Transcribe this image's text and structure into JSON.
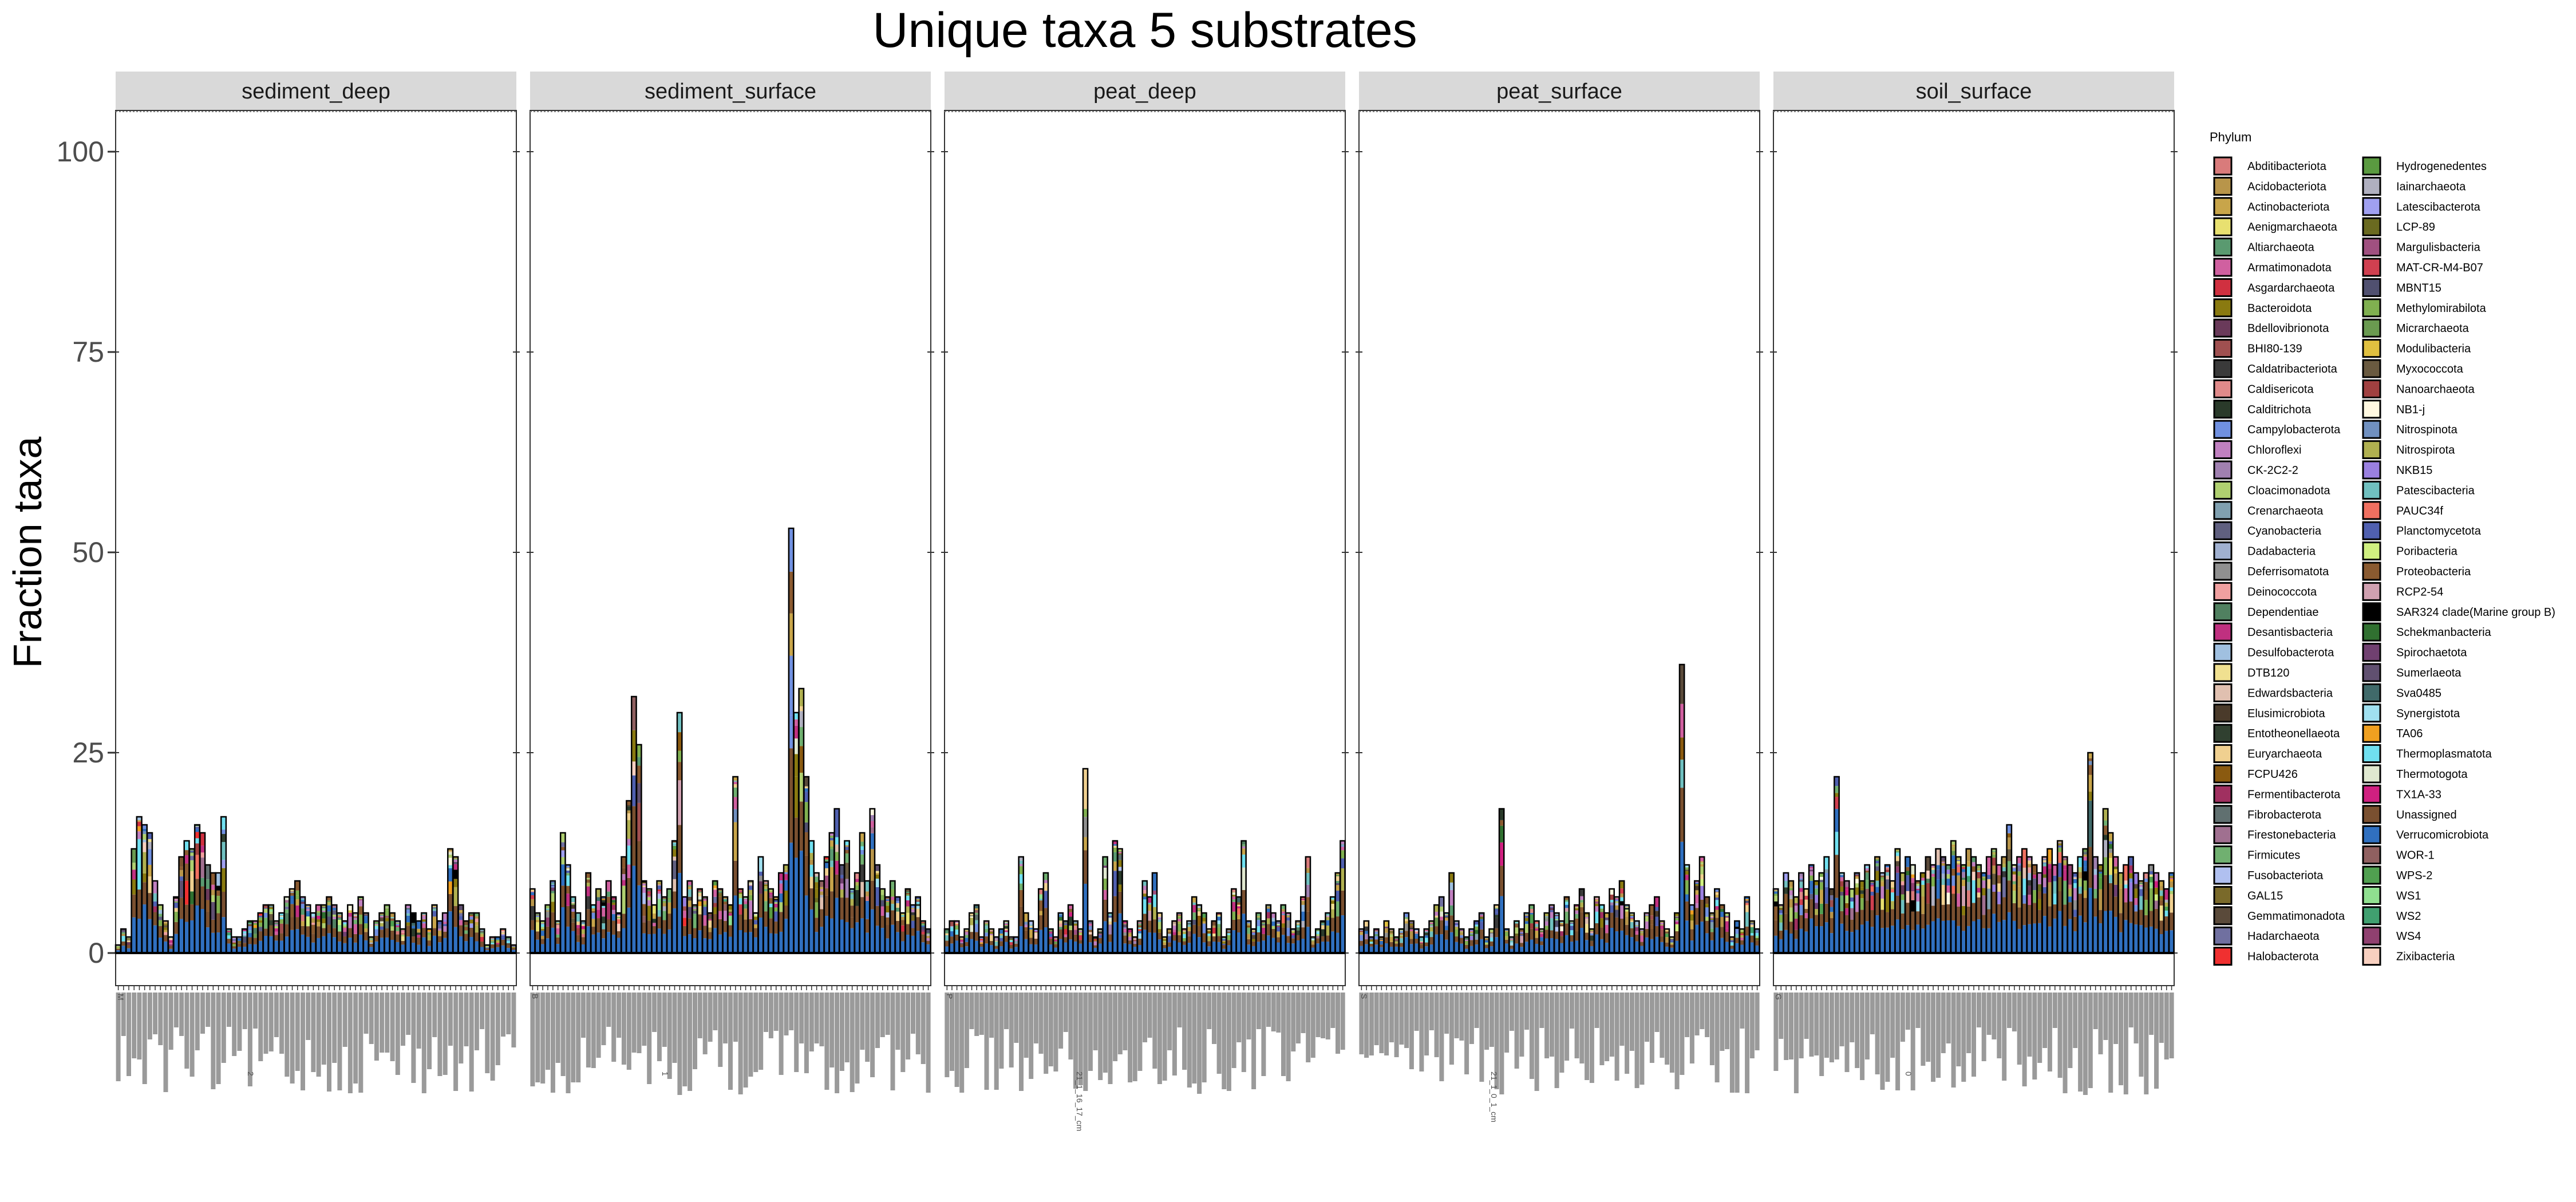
{
  "chart_data": {
    "type": "bar",
    "stacked": true,
    "title": "Unique taxa 5 substrates",
    "ylabel": "Fraction taxa",
    "xlabel": "",
    "ylim": [
      0,
      105
    ],
    "yticks": [
      0,
      25,
      50,
      75,
      100
    ],
    "legend_title": "Phylum",
    "legend_position": "right",
    "panels": [
      {
        "name": "sediment_deep",
        "sample_label_prefix": "M",
        "sample_label_note": "2",
        "totals": [
          1,
          3,
          2,
          13,
          17,
          16,
          15,
          9,
          6,
          4,
          2,
          7,
          12,
          14,
          13,
          16,
          15,
          11,
          10,
          10,
          17,
          3,
          2,
          2,
          3,
          4,
          4,
          5,
          6,
          6,
          4,
          5,
          7,
          8,
          9,
          7,
          6,
          5,
          6,
          6,
          7,
          6,
          5,
          4,
          6,
          5,
          7,
          5,
          2,
          4,
          5,
          6,
          5,
          4,
          3,
          6,
          5,
          4,
          5,
          3,
          6,
          4,
          5,
          13,
          12,
          6,
          4,
          5,
          5,
          3,
          1,
          2,
          2,
          3,
          2,
          1
        ]
      },
      {
        "name": "sediment_surface",
        "sample_label_prefix": "B",
        "sample_label_note": "1",
        "totals": [
          8,
          5,
          4,
          6,
          9,
          4,
          15,
          11,
          7,
          5,
          4,
          10,
          6,
          8,
          7,
          9,
          7,
          5,
          12,
          19,
          32,
          26,
          9,
          8,
          6,
          9,
          7,
          8,
          14,
          30,
          7,
          9,
          6,
          8,
          7,
          5,
          9,
          8,
          7,
          6,
          22,
          8,
          7,
          9,
          5,
          12,
          9,
          8,
          7,
          10,
          11,
          53,
          30,
          33,
          22,
          14,
          10,
          9,
          12,
          15,
          18,
          11,
          14,
          8,
          10,
          15,
          9,
          18,
          11,
          8,
          7,
          9,
          7,
          5,
          8,
          6,
          7,
          4,
          3
        ]
      },
      {
        "name": "peat_deep",
        "sample_label_prefix": "P",
        "sample_label_note": "21_1_16_17_cm",
        "totals": [
          3,
          4,
          4,
          2,
          3,
          5,
          6,
          2,
          4,
          3,
          2,
          3,
          4,
          2,
          2,
          12,
          5,
          4,
          3,
          8,
          10,
          3,
          2,
          5,
          4,
          6,
          4,
          3,
          23,
          4,
          2,
          3,
          12,
          5,
          14,
          13,
          4,
          3,
          2,
          4,
          9,
          7,
          10,
          5,
          2,
          3,
          4,
          5,
          3,
          4,
          7,
          6,
          5,
          3,
          4,
          5,
          2,
          3,
          8,
          7,
          14,
          4,
          3,
          5,
          4,
          6,
          5,
          4,
          6,
          5,
          3,
          4,
          7,
          12,
          2,
          3,
          4,
          5,
          7,
          10,
          14
        ]
      },
      {
        "name": "peat_surface",
        "sample_label_prefix": "S",
        "sample_label_note": "21_1_0_1_cm",
        "totals": [
          3,
          4,
          2,
          3,
          2,
          4,
          3,
          2,
          3,
          5,
          4,
          3,
          2,
          3,
          4,
          6,
          7,
          5,
          10,
          4,
          3,
          2,
          3,
          4,
          5,
          2,
          3,
          6,
          18,
          3,
          2,
          4,
          3,
          5,
          6,
          4,
          3,
          5,
          6,
          5,
          4,
          7,
          4,
          6,
          8,
          5,
          3,
          7,
          6,
          5,
          8,
          7,
          9,
          6,
          5,
          4,
          3,
          5,
          6,
          7,
          4,
          3,
          2,
          5,
          36,
          11,
          6,
          9,
          12,
          7,
          5,
          8,
          6,
          5,
          2,
          4,
          3,
          7,
          4,
          3
        ]
      },
      {
        "name": "soil_surface",
        "sample_label_prefix": "G",
        "sample_label_note": "0",
        "totals": [
          8,
          6,
          10,
          9,
          7,
          10,
          8,
          11,
          9,
          10,
          12,
          8,
          22,
          10,
          9,
          8,
          10,
          9,
          11,
          9,
          12,
          10,
          11,
          9,
          13,
          10,
          12,
          11,
          9,
          10,
          12,
          11,
          13,
          12,
          11,
          14,
          12,
          11,
          13,
          12,
          11,
          10,
          12,
          13,
          11,
          12,
          16,
          11,
          12,
          13,
          12,
          11,
          10,
          12,
          13,
          11,
          14,
          12,
          11,
          10,
          12,
          13,
          25,
          12,
          11,
          18,
          15,
          12,
          10,
          11,
          12,
          10,
          9,
          10,
          11,
          10,
          9,
          8,
          10
        ]
      }
    ],
    "phyla": [
      {
        "name": "Abditibacteriota",
        "color": "#d97b7b"
      },
      {
        "name": "Acidobacteriota",
        "color": "#b8954a"
      },
      {
        "name": "Actinobacteriota",
        "color": "#c8a54a"
      },
      {
        "name": "Aenigmarchaeota",
        "color": "#e8e070"
      },
      {
        "name": "Altiarchaeota",
        "color": "#5a9a70"
      },
      {
        "name": "Armatimonadota",
        "color": "#d060a0"
      },
      {
        "name": "Asgardarchaeota",
        "color": "#d03040"
      },
      {
        "name": "Bacteroidota",
        "color": "#8a7a10"
      },
      {
        "name": "Bdellovibrionota",
        "color": "#6a3a5a"
      },
      {
        "name": "BHI80-139",
        "color": "#a05050"
      },
      {
        "name": "Caldatribacteriota",
        "color": "#3a3a3a"
      },
      {
        "name": "Caldisericota",
        "color": "#e08a8a"
      },
      {
        "name": "Calditrichota",
        "color": "#2a3a2a"
      },
      {
        "name": "Campylobacterota",
        "color": "#7090e0"
      },
      {
        "name": "Chloroflexi",
        "color": "#c080c0"
      },
      {
        "name": "CK-2C2-2",
        "color": "#a080b0"
      },
      {
        "name": "Cloacimonadota",
        "color": "#b0d070"
      },
      {
        "name": "Crenarchaeota",
        "color": "#80a0b0"
      },
      {
        "name": "Cyanobacteria",
        "color": "#606080"
      },
      {
        "name": "Dadabacteria",
        "color": "#a0b0d0"
      },
      {
        "name": "Deferrisomatota",
        "color": "#909090"
      },
      {
        "name": "Deinococcota",
        "color": "#f0a0a0"
      },
      {
        "name": "Dependentiae",
        "color": "#508060"
      },
      {
        "name": "Desantisbacteria",
        "color": "#c03080"
      },
      {
        "name": "Desulfobacterota",
        "color": "#a0c0e0"
      },
      {
        "name": "DTB120",
        "color": "#f0e090"
      },
      {
        "name": "Edwardsbacteria",
        "color": "#e0c0b0"
      },
      {
        "name": "Elusimicrobiota",
        "color": "#4a3a2a"
      },
      {
        "name": "Entotheonellaeota",
        "color": "#304030"
      },
      {
        "name": "Euryarchaeota",
        "color": "#f0d090"
      },
      {
        "name": "FCPU426",
        "color": "#8a5a10"
      },
      {
        "name": "Fermentibacterota",
        "color": "#a03060"
      },
      {
        "name": "Fibrobacterota",
        "color": "#607070"
      },
      {
        "name": "Firestonebacteria",
        "color": "#a07090"
      },
      {
        "name": "Firmicutes",
        "color": "#70b070"
      },
      {
        "name": "Fusobacteriota",
        "color": "#b0c0f0"
      },
      {
        "name": "GAL15",
        "color": "#7a6a2a"
      },
      {
        "name": "Gemmatimonadota",
        "color": "#5a4a3a"
      },
      {
        "name": "Hadarchaeota",
        "color": "#7070a0"
      },
      {
        "name": "Halobacterota",
        "color": "#f03030"
      },
      {
        "name": "Hydrogenedentes",
        "color": "#5a9a40"
      },
      {
        "name": "Iainarchaeota",
        "color": "#b0b0c0"
      },
      {
        "name": "Latescibacterota",
        "color": "#a0a0f0"
      },
      {
        "name": "LCP-89",
        "color": "#6a6a20"
      },
      {
        "name": "Margulisbacteria",
        "color": "#a05080"
      },
      {
        "name": "MAT-CR-M4-B07",
        "color": "#d04050"
      },
      {
        "name": "MBNT15",
        "color": "#505070"
      },
      {
        "name": "Methylomirabilota",
        "color": "#80b050"
      },
      {
        "name": "Micrarchaeota",
        "color": "#6a9a50"
      },
      {
        "name": "Modulibacteria",
        "color": "#e0c040"
      },
      {
        "name": "Myxococcota",
        "color": "#6a5a40"
      },
      {
        "name": "Nanoarchaeota",
        "color": "#a04040"
      },
      {
        "name": "NB1-j",
        "color": "#fff8e0"
      },
      {
        "name": "Nitrospinota",
        "color": "#7090c0"
      },
      {
        "name": "Nitrospirota",
        "color": "#b0b050"
      },
      {
        "name": "NKB15",
        "color": "#9a80e0"
      },
      {
        "name": "Patescibacteria",
        "color": "#70c0c0"
      },
      {
        "name": "PAUC34f",
        "color": "#f07060"
      },
      {
        "name": "Planctomycetota",
        "color": "#5060b0"
      },
      {
        "name": "Poribacteria",
        "color": "#d0f080"
      },
      {
        "name": "Proteobacteria",
        "color": "#8a5a30"
      },
      {
        "name": "RCP2-54",
        "color": "#d0a0b0"
      },
      {
        "name": "SAR324 clade(Marine group B)",
        "color": "#000000"
      },
      {
        "name": "Schekmanbacteria",
        "color": "#307030"
      },
      {
        "name": "Spirochaetota",
        "color": "#704070"
      },
      {
        "name": "Sumerlaeota",
        "color": "#605070"
      },
      {
        "name": "Sva0485",
        "color": "#406a6a"
      },
      {
        "name": "Synergistota",
        "color": "#a0e0f0"
      },
      {
        "name": "TA06",
        "color": "#f0a020"
      },
      {
        "name": "Thermoplasmatota",
        "color": "#70e0f0"
      },
      {
        "name": "Thermotogota",
        "color": "#e0e8d0"
      },
      {
        "name": "TX1A-33",
        "color": "#d02080"
      },
      {
        "name": "Unassigned",
        "color": "#7a5030"
      },
      {
        "name": "Verrucomicrobiota",
        "color": "#3070c0"
      },
      {
        "name": "WOR-1",
        "color": "#906060"
      },
      {
        "name": "WPS-2",
        "color": "#50a050"
      },
      {
        "name": "WS1",
        "color": "#90e090"
      },
      {
        "name": "WS2",
        "color": "#40a070"
      },
      {
        "name": "WS4",
        "color": "#904070"
      },
      {
        "name": "Zixibacteria",
        "color": "#f8d0c0"
      }
    ]
  }
}
